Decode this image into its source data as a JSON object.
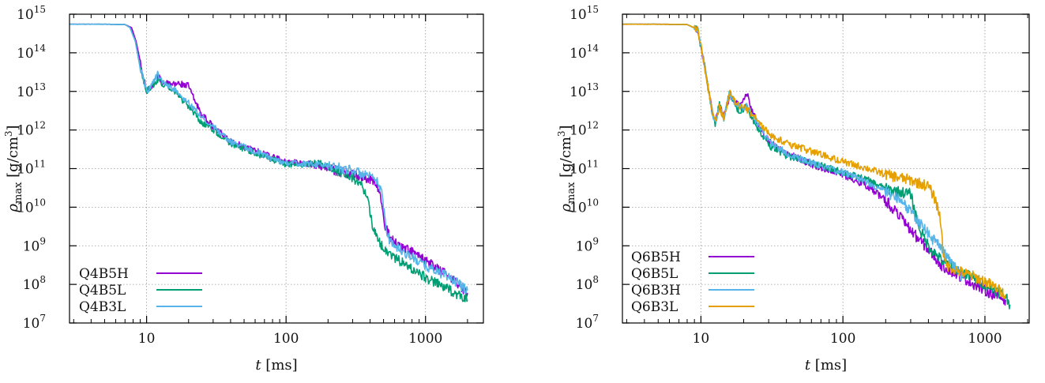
{
  "chart_data": [
    {
      "type": "line",
      "xscale": "log",
      "yscale": "log",
      "xlim": [
        2.8,
        2600
      ],
      "ylim": [
        10000000.0,
        1000000000000000.0
      ],
      "xlabel": "t [ms]",
      "ylabel": "ρmax [g/cm3]",
      "grid": true,
      "legend_position": "bottom-left",
      "xticks": [
        {
          "v": 10,
          "label": "10"
        },
        {
          "v": 100,
          "label": "100"
        },
        {
          "v": 1000,
          "label": "1000"
        }
      ],
      "yticks": [
        {
          "v": 10000000.0,
          "base": "10",
          "exp": "7"
        },
        {
          "v": 100000000.0,
          "base": "10",
          "exp": "8"
        },
        {
          "v": 1000000000.0,
          "base": "10",
          "exp": "9"
        },
        {
          "v": 10000000000.0,
          "base": "10",
          "exp": "10"
        },
        {
          "v": 100000000000.0,
          "base": "10",
          "exp": "11"
        },
        {
          "v": 1000000000000.0,
          "base": "10",
          "exp": "12"
        },
        {
          "v": 10000000000000.0,
          "base": "10",
          "exp": "13"
        },
        {
          "v": 100000000000000.0,
          "base": "10",
          "exp": "14"
        },
        {
          "v": 1000000000000000.0,
          "base": "10",
          "exp": "15"
        }
      ],
      "series": [
        {
          "name": "Q4B5H",
          "color": "#9400d3",
          "x": [
            2.8,
            5,
            7,
            7.8,
            8.4,
            9.2,
            10,
            11,
            12,
            13,
            15,
            17,
            20,
            22,
            25,
            30,
            40,
            60,
            80,
            100,
            150,
            200,
            300,
            400,
            450,
            480,
            500,
            550,
            600,
            800,
            1000,
            1500,
            2000
          ],
          "y": [
            550000000000000.0,
            550000000000000.0,
            540000000000000.0,
            450000000000000.0,
            200000000000000.0,
            40000000000000.0,
            10000000000000.0,
            15000000000000.0,
            26000000000000.0,
            17000000000000.0,
            15000000000000.0,
            16000000000000.0,
            14000000000000.0,
            6000000000000.0,
            2500000000000.0,
            1200000000000.0,
            500000000000.0,
            300000000000.0,
            200000000000.0,
            150000000000.0,
            130000000000.0,
            100000000000.0,
            70000000000.0,
            55000000000.0,
            40000000000.0,
            15000000000.0,
            4500000000.0,
            1800000000.0,
            1200000000.0,
            700000000.0,
            400000000.0,
            160000000.0,
            60000000.0
          ],
          "noise": 0.08
        },
        {
          "name": "Q4B5L",
          "color": "#009e73",
          "x": [
            2.8,
            5,
            7,
            7.6,
            8.3,
            9,
            10,
            11,
            12,
            13,
            15,
            20,
            25,
            30,
            40,
            60,
            80,
            100,
            130,
            170,
            200,
            300,
            350,
            380,
            400,
            420,
            450,
            500,
            600,
            800,
            1000,
            1500,
            2000
          ],
          "y": [
            550000000000000.0,
            550000000000000.0,
            540000000000000.0,
            450000000000000.0,
            200000000000000.0,
            40000000000000.0,
            10000000000000.0,
            14000000000000.0,
            20000000000000.0,
            16000000000000.0,
            12000000000000.0,
            4000000000000.0,
            1500000000000.0,
            1000000000000.0,
            450000000000.0,
            250000000000.0,
            170000000000.0,
            130000000000.0,
            120000000000.0,
            150000000000.0,
            110000000000.0,
            60000000000.0,
            35000000000.0,
            20000000000.0,
            8000000000.0,
            3000000000.0,
            1500000000.0,
            900000000.0,
            500000000.0,
            250000000.0,
            150000000.0,
            70000000.0,
            40000000.0
          ],
          "noise": 0.08
        },
        {
          "name": "Q4B3L",
          "color": "#56b4e9",
          "x": [
            2.8,
            5,
            7,
            7.6,
            8.3,
            9,
            10,
            11,
            12,
            13,
            15,
            20,
            25,
            30,
            40,
            60,
            80,
            100,
            150,
            200,
            300,
            400,
            450,
            480,
            500,
            520,
            550,
            600,
            800,
            1000,
            1500,
            2000
          ],
          "y": [
            550000000000000.0,
            550000000000000.0,
            540000000000000.0,
            450000000000000.0,
            200000000000000.0,
            40000000000000.0,
            10000000000000.0,
            15000000000000.0,
            28000000000000.0,
            17000000000000.0,
            13000000000000.0,
            5000000000000.0,
            2200000000000.0,
            1200000000000.0,
            500000000000.0,
            280000000000.0,
            180000000000.0,
            140000000000.0,
            130000000000.0,
            120000000000.0,
            90000000000.0,
            60000000000.0,
            45000000000.0,
            30000000000.0,
            10000000000.0,
            3000000000.0,
            1500000000.0,
            1000000000.0,
            500000000.0,
            300000000.0,
            150000000.0,
            70000000.0
          ],
          "noise": 0.08
        }
      ]
    },
    {
      "type": "line",
      "xscale": "log",
      "yscale": "log",
      "xlim": [
        2.8,
        2050
      ],
      "ylim": [
        10000000.0,
        1000000000000000.0
      ],
      "xlabel": "t [ms]",
      "ylabel": "ρmax [g/cm3]",
      "grid": true,
      "legend_position": "bottom-left",
      "xticks": [
        {
          "v": 10,
          "label": "10"
        },
        {
          "v": 100,
          "label": "100"
        },
        {
          "v": 1000,
          "label": "1000"
        }
      ],
      "yticks": [
        {
          "v": 10000000.0,
          "base": "10",
          "exp": "7"
        },
        {
          "v": 100000000.0,
          "base": "10",
          "exp": "8"
        },
        {
          "v": 1000000000.0,
          "base": "10",
          "exp": "9"
        },
        {
          "v": 10000000000.0,
          "base": "10",
          "exp": "10"
        },
        {
          "v": 100000000000.0,
          "base": "10",
          "exp": "11"
        },
        {
          "v": 1000000000000.0,
          "base": "10",
          "exp": "12"
        },
        {
          "v": 10000000000000.0,
          "base": "10",
          "exp": "13"
        },
        {
          "v": 100000000000000.0,
          "base": "10",
          "exp": "14"
        },
        {
          "v": 1000000000000000.0,
          "base": "10",
          "exp": "15"
        }
      ],
      "series": [
        {
          "name": "Q6B5H",
          "color": "#9400d3",
          "x": [
            2.8,
            5,
            8,
            9.5,
            10.2,
            11,
            12,
            12.6,
            13.5,
            14.5,
            16,
            17.5,
            19,
            21,
            23,
            25,
            30,
            40,
            60,
            100,
            150,
            200,
            250,
            300,
            400,
            500,
            700,
            1000,
            1400
          ],
          "y": [
            550000000000000.0,
            550000000000000.0,
            540000000000000.0,
            400000000000000.0,
            100000000000000.0,
            20000000000000.0,
            3000000000000.0,
            1500000000000.0,
            4000000000000.0,
            2500000000000.0,
            8000000000000.0,
            5000000000000.0,
            4000000000000.0,
            9000000000000.0,
            3000000000000.0,
            1500000000000.0,
            500000000000.0,
            250000000000.0,
            130000000000.0,
            70000000000.0,
            35000000000.0,
            15000000000.0,
            6000000000.0,
            2500000000.0,
            800000000.0,
            300000000.0,
            150000000.0,
            70000000.0,
            40000000.0
          ],
          "noise": 0.09
        },
        {
          "name": "Q6B5L",
          "color": "#009e73",
          "x": [
            2.8,
            5,
            8,
            9.5,
            10.2,
            11,
            12,
            12.6,
            13.5,
            14.5,
            16,
            17.5,
            19,
            21,
            23,
            25,
            30,
            40,
            60,
            100,
            150,
            200,
            250,
            300,
            320,
            350,
            400,
            500,
            700,
            1000,
            1400,
            1500
          ],
          "y": [
            550000000000000.0,
            550000000000000.0,
            540000000000000.0,
            400000000000000.0,
            100000000000000.0,
            20000000000000.0,
            3000000000000.0,
            1500000000000.0,
            5000000000000.0,
            2000000000000.0,
            10000000000000.0,
            4000000000000.0,
            3000000000000.0,
            4000000000000.0,
            2000000000000.0,
            1200000000000.0,
            400000000000.0,
            220000000000.0,
            140000000000.0,
            80000000000.0,
            50000000000.0,
            30000000000.0,
            25000000000.0,
            22000000000.0,
            8000000000.0,
            2500000000.0,
            1000000000.0,
            400000000.0,
            200000000.0,
            100000000.0,
            50000000.0,
            30000000.0
          ],
          "noise": 0.09
        },
        {
          "name": "Q6B3H",
          "color": "#56b4e9",
          "x": [
            2.8,
            5,
            8,
            9.5,
            10.2,
            11,
            12,
            12.6,
            13.5,
            14.5,
            16,
            17.5,
            19,
            21,
            23,
            25,
            30,
            40,
            60,
            100,
            150,
            200,
            250,
            300,
            400,
            500,
            600,
            700
          ],
          "y": [
            550000000000000.0,
            550000000000000.0,
            540000000000000.0,
            400000000000000.0,
            100000000000000.0,
            20000000000000.0,
            3000000000000.0,
            1500000000000.0,
            4000000000000.0,
            2000000000000.0,
            9000000000000.0,
            5000000000000.0,
            4000000000000.0,
            4000000000000.0,
            2500000000000.0,
            1500000000000.0,
            500000000000.0,
            250000000000.0,
            140000000000.0,
            80000000000.0,
            45000000000.0,
            25000000000.0,
            15000000000.0,
            8000000000.0,
            2000000000.0,
            800000000.0,
            300000000.0,
            150000000.0
          ],
          "noise": 0.09
        },
        {
          "name": "Q6B3L",
          "color": "#e69f00",
          "x": [
            2.8,
            5,
            8,
            9.5,
            10.2,
            11,
            12,
            12.6,
            13.5,
            14.5,
            16,
            17.5,
            19,
            21,
            23,
            25,
            30,
            40,
            60,
            100,
            150,
            200,
            300,
            400,
            450,
            480,
            500,
            510,
            520,
            550,
            600,
            700,
            800,
            1000,
            1200,
            1400
          ],
          "y": [
            550000000000000.0,
            550000000000000.0,
            540000000000000.0,
            400000000000000.0,
            100000000000000.0,
            20000000000000.0,
            3000000000000.0,
            1500000000000.0,
            4000000000000.0,
            2000000000000.0,
            9000000000000.0,
            5000000000000.0,
            4000000000000.0,
            3500000000000.0,
            2500000000000.0,
            1800000000000.0,
            800000000000.0,
            450000000000.0,
            280000000000.0,
            150000000000.0,
            100000000000.0,
            70000000000.0,
            50000000000.0,
            35000000000.0,
            15000000000.0,
            6000000000.0,
            2000000000.0,
            500000000.0,
            400000000.0,
            300000000.0,
            250000000.0,
            200000000.0,
            170000000.0,
            120000000.0,
            80000000.0,
            55000000.0
          ],
          "noise": 0.09
        }
      ]
    }
  ]
}
